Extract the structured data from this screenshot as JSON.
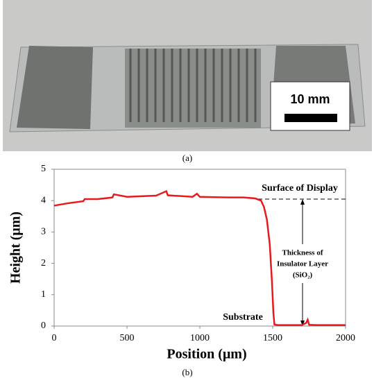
{
  "photo": {
    "label": "(a)",
    "scale_label": "10 mm"
  },
  "chart_data": {
    "type": "line",
    "panel_label": "(b)",
    "xlabel": "Position (μm)",
    "ylabel": "Height (μm)",
    "x": [
      0,
      100,
      200,
      210,
      300,
      400,
      410,
      500,
      600,
      700,
      770,
      780,
      850,
      950,
      980,
      1000,
      1100,
      1200,
      1300,
      1380,
      1420,
      1440,
      1460,
      1480,
      1495,
      1505,
      1512,
      1530,
      1600,
      1700,
      1730,
      1740,
      1750,
      1800,
      1900,
      2000
    ],
    "series": [
      {
        "name": "Height",
        "color": "#e8191c",
        "values": [
          3.84,
          3.92,
          3.98,
          4.05,
          4.05,
          4.1,
          4.2,
          4.12,
          4.14,
          4.16,
          4.3,
          4.17,
          4.15,
          4.12,
          4.22,
          4.12,
          4.11,
          4.1,
          4.1,
          4.07,
          4.0,
          3.8,
          3.4,
          2.6,
          1.4,
          0.4,
          0.05,
          0.03,
          0.03,
          0.03,
          0.1,
          0.2,
          0.04,
          0.03,
          0.03,
          0.03
        ]
      }
    ],
    "xlim": [
      0,
      2000
    ],
    "xticks": [
      0,
      500,
      1000,
      1500,
      2000
    ],
    "ylim": [
      0,
      5
    ],
    "yticks": [
      0,
      1,
      2,
      3,
      4,
      5
    ],
    "surface_level": 4.05,
    "annotations": {
      "surface": "Surface of Display",
      "thickness": [
        "Thickness of",
        "Insulator Layer",
        "(SiO₂)"
      ],
      "substrate": "Substrate"
    }
  }
}
